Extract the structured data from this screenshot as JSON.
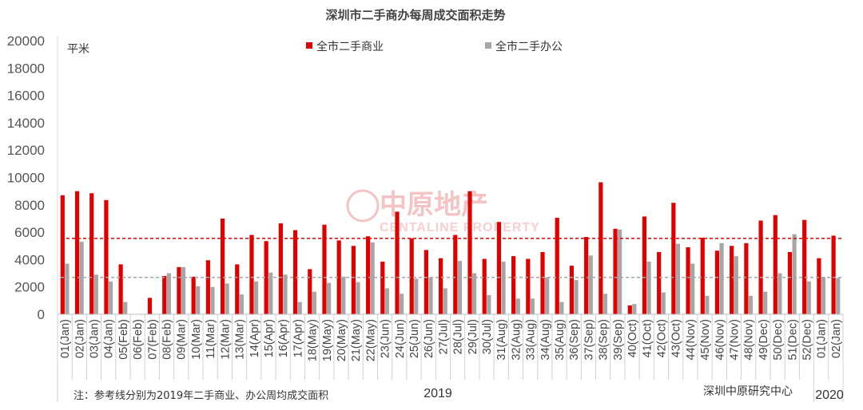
{
  "chart_data": {
    "type": "bar",
    "title": "深圳市二手商办每周成交面积走势",
    "ylabel": "平米",
    "ylim": [
      0,
      20000
    ],
    "yticks": [
      0,
      2000,
      4000,
      6000,
      8000,
      10000,
      12000,
      14000,
      16000,
      18000,
      20000
    ],
    "legend_position": "top-center",
    "grid": false,
    "categories": [
      "01(Jan)",
      "02(Jan)",
      "03(Jan)",
      "04(Jan)",
      "05(Feb)",
      "06(Feb)",
      "07(Feb)",
      "08(Feb)",
      "09(Mar)",
      "10(Mar)",
      "11(Mar)",
      "12(Mar)",
      "13(Mar)",
      "14(Apr)",
      "15(Apr)",
      "16(Apr)",
      "17(Apr)",
      "18(May)",
      "19(May)",
      "20(May)",
      "21(May)",
      "22(May)",
      "23(Jun)",
      "24(Jun)",
      "25(Jun)",
      "26(Jun)",
      "27(Jul)",
      "28(Jul)",
      "29(Jul)",
      "30(Jul)",
      "31(Aug)",
      "32(Aug)",
      "33(Aug)",
      "34(Aug)",
      "35(Aug)",
      "36(Sep)",
      "37(Sep)",
      "38(Sep)",
      "39(Sep)",
      "40(Oct)",
      "41(Oct)",
      "42(Oct)",
      "43(Oct)",
      "44(Nov)",
      "45(Nov)",
      "46(Nov)",
      "47(Nov)",
      "48(Nov)",
      "49(Dec)",
      "50(Dec)",
      "51(Dec)",
      "52(Dec)",
      "01(Jan)",
      "02(Jan)"
    ],
    "series": [
      {
        "name": "全市二手商业",
        "color": "#e00000",
        "values": [
          8700,
          9000,
          8850,
          8350,
          3650,
          0,
          1200,
          2800,
          3450,
          2750,
          3950,
          7000,
          3650,
          5800,
          5350,
          6650,
          6150,
          3300,
          6550,
          5400,
          5000,
          5700,
          3850,
          7500,
          5550,
          4700,
          4100,
          5800,
          9000,
          4050,
          6750,
          4250,
          4050,
          4550,
          7050,
          3550,
          5650,
          9650,
          6250,
          650,
          7150,
          4550,
          8150,
          4900,
          5600,
          4650,
          5000,
          5200,
          6850,
          7250,
          4550,
          6900,
          4100,
          5750
        ]
      },
      {
        "name": "全市二手办公",
        "color": "#a6a6a6",
        "values": [
          3700,
          5300,
          2900,
          2400,
          900,
          0,
          0,
          3000,
          3450,
          2050,
          2000,
          2250,
          1450,
          2400,
          3050,
          2900,
          900,
          1650,
          2300,
          2750,
          2350,
          5250,
          1900,
          1500,
          2600,
          2700,
          1900,
          3900,
          3000,
          1400,
          3850,
          1150,
          1150,
          2700,
          900,
          2500,
          4300,
          1500,
          6200,
          750,
          3850,
          1600,
          5150,
          3700,
          1350,
          5200,
          4250,
          1350,
          1650,
          3000,
          5850,
          2400,
          2700,
          2650
        ]
      }
    ],
    "reference_lines": [
      {
        "series": "全市二手商业",
        "value": 5550,
        "color": "#e00000",
        "style": "dashed"
      },
      {
        "series": "全市二手办公",
        "value": 2700,
        "color": "#a6a6a6",
        "style": "dashed"
      }
    ],
    "year_labels": [
      "2019",
      "2020"
    ],
    "note": "注：参考线分别为2019年二手商业、办公周均成交面积",
    "source": "深圳中原研究中心",
    "watermark": {
      "cn": "中原地产",
      "en": "CENTALINE PROPERTY"
    }
  }
}
